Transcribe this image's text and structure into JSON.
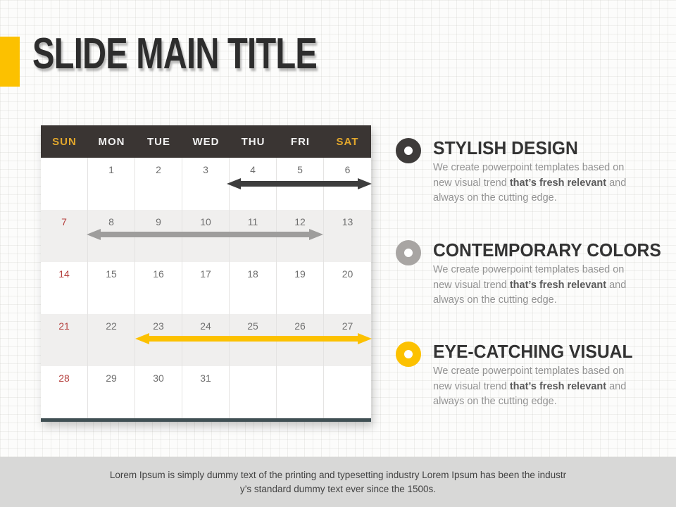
{
  "slide": {
    "title": "SLIDE MAIN TITLE"
  },
  "calendar": {
    "weekdays": [
      "SUN",
      "MON",
      "TUE",
      "WED",
      "THU",
      "FRI",
      "SAT"
    ],
    "weeks": [
      [
        "",
        "1",
        "2",
        "3",
        "4",
        "5",
        "6"
      ],
      [
        "7",
        "8",
        "9",
        "10",
        "11",
        "12",
        "13"
      ],
      [
        "14",
        "15",
        "16",
        "17",
        "18",
        "19",
        "20"
      ],
      [
        "21",
        "22",
        "23",
        "24",
        "25",
        "26",
        "27"
      ],
      [
        "28",
        "29",
        "30",
        "31",
        "",
        "",
        ""
      ]
    ]
  },
  "arrows": [
    {
      "color": "#3d3d3d"
    },
    {
      "color": "#9e9d9c"
    },
    {
      "color": "#fcc100"
    }
  ],
  "features": [
    {
      "heading": "STYLISH DESIGN",
      "icon_color": "#3e3b3a"
    },
    {
      "heading": "CONTEMPORARY COLORS",
      "icon_color": "#a8a5a3"
    },
    {
      "heading": "EYE-CATCHING VISUAL",
      "icon_color": "#fcc100"
    }
  ],
  "feature_body": {
    "line1": "We create powerpoint templates based on",
    "line2_pre": "new visual trend ",
    "line2_bold": "that’s fresh relevant",
    "line2_post": " and",
    "line3": "always on the cutting edge."
  },
  "footer": {
    "line1": "Lorem Ipsum is simply dummy text of the printing and typesetting industry Lorem Ipsum has been the industr",
    "line2": "y’s standard dummy text ever since the 1500s."
  },
  "colors": {
    "accent_yellow": "#fcc100",
    "calendar_header_bg": "#3a3533",
    "weekend_gold": "#e2a72c",
    "sunday_red": "#b5403e",
    "row_alt_gray": "#f0efee",
    "calendar_bottom_border": "#3f4f53",
    "arrow_dark": "#3d3d3d",
    "arrow_gray": "#9e9d9c",
    "footer_bg": "#d8d8d7",
    "title_dark": "#2d2d2d"
  }
}
